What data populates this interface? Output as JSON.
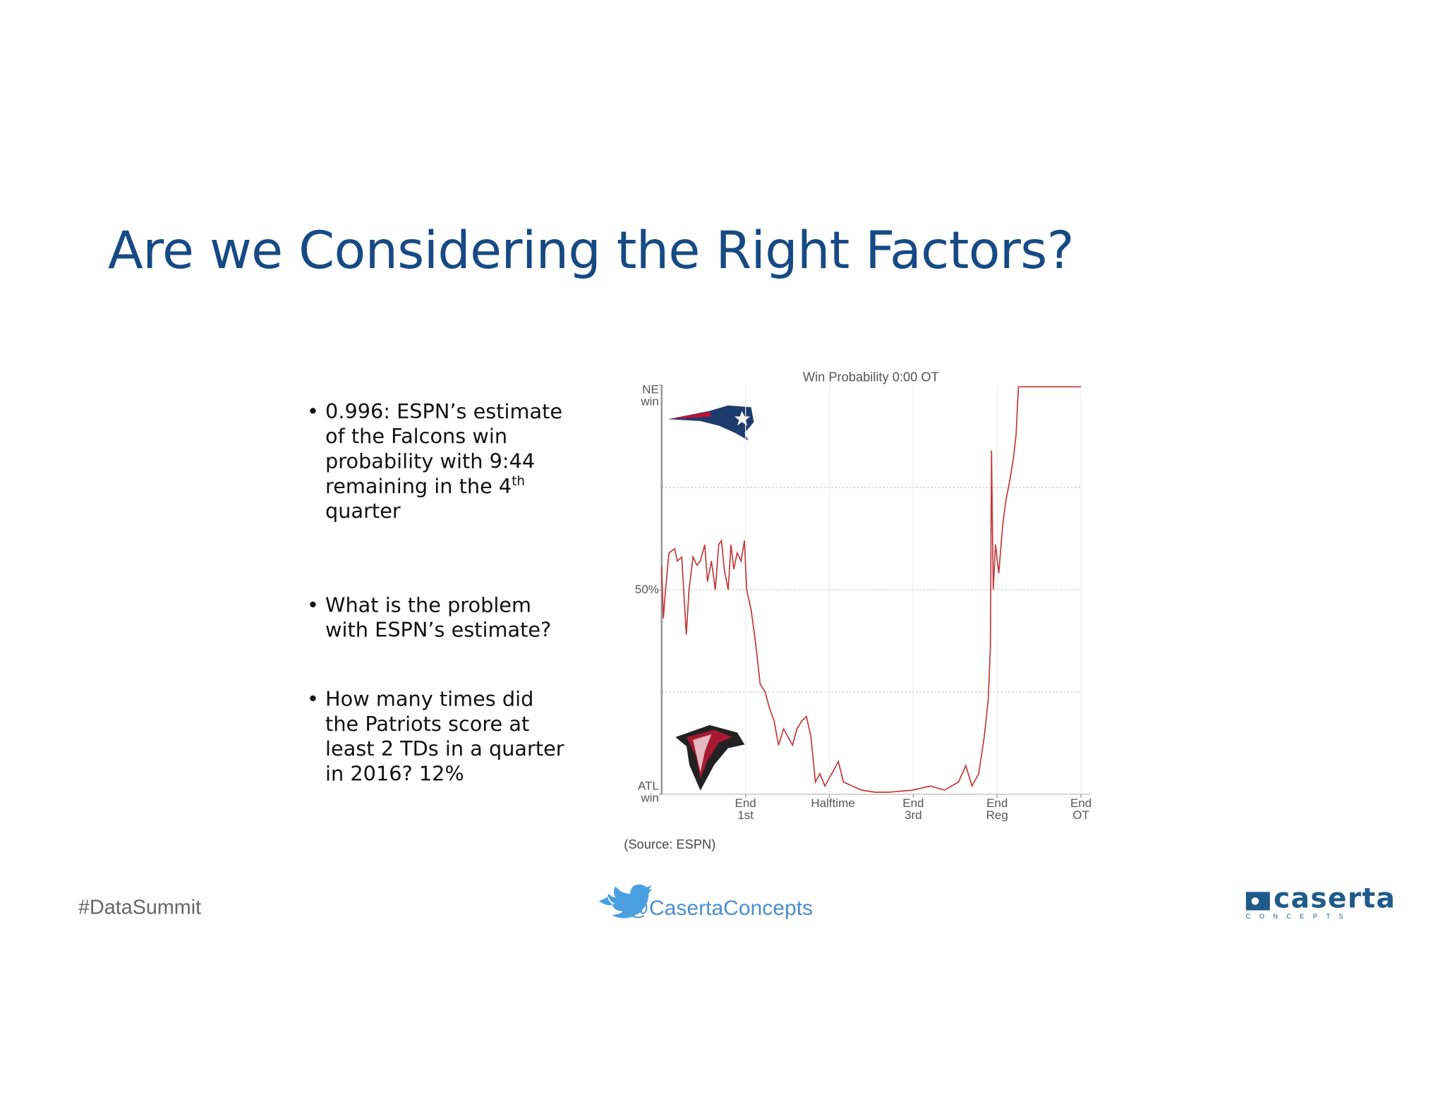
{
  "title": "Are we Considering the Right Factors?",
  "bullets": [
    {
      "text": "0.996: ESPN’s estimate of the Falcons win probability with 9:44 remaining in the 4",
      "sup": "th",
      "tail": "quarter"
    },
    {
      "text": "What is the problem with ESPN’s estimate?"
    },
    {
      "text": "How many times did the Patriots score at least 2 TDs in a quarter in 2016? 12%"
    }
  ],
  "source": "(Source: ESPN)",
  "footer": {
    "hashtag": "#DataSummit",
    "handle": "@CasertaConcepts",
    "brand": "caserta",
    "brand_sub": "CONCEPTS"
  },
  "chart_data": {
    "type": "line",
    "title": "Win Probability 0:00 OT",
    "color": "#c0393b",
    "grid": true,
    "xlim": [
      0,
      75
    ],
    "xticks": [
      {
        "value": 15,
        "label": "End 1st"
      },
      {
        "value": 30,
        "label": "Halftime"
      },
      {
        "value": 45,
        "label": "End 3rd"
      },
      {
        "value": 60,
        "label": "End Reg"
      },
      {
        "value": 75,
        "label": "End OT"
      }
    ],
    "ylim": [
      0,
      100
    ],
    "yticks": [
      {
        "value": 0,
        "label": "ATL win"
      },
      {
        "value": 50,
        "label": "50%"
      },
      {
        "value": 100,
        "label": "NE win"
      }
    ],
    "x": [
      0,
      0.3,
      0.7,
      1.3,
      2.3,
      2.8,
      3.6,
      4.4,
      4.9,
      5.6,
      6.3,
      6.9,
      7.7,
      8.2,
      8.9,
      9.6,
      10.2,
      10.7,
      11.2,
      11.9,
      12.4,
      12.9,
      13.5,
      14.2,
      14.8,
      15.2,
      16.0,
      16.8,
      17.6,
      18.5,
      19.3,
      20.1,
      20.9,
      21.8,
      22.6,
      23.4,
      24.2,
      25.1,
      25.9,
      26.7,
      27.5,
      28.3,
      29.2,
      30.0,
      30.8,
      31.6,
      32.5,
      34.1,
      35.8,
      38.2,
      40.7,
      44.8,
      48.1,
      50.6,
      53.1,
      54.4,
      55.5,
      56.7,
      57.7,
      58.4,
      58.8,
      59.0,
      59.3,
      59.7,
      60.3,
      61.0,
      61.6,
      62.3,
      62.9,
      63.4,
      63.8,
      64.1,
      75
    ],
    "values": [
      55.6,
      43,
      50,
      59,
      60,
      57,
      58,
      39,
      50,
      58,
      56,
      57,
      61,
      52,
      57,
      50,
      61,
      62,
      55,
      50,
      61,
      55,
      59,
      57,
      62,
      50,
      45,
      37,
      27,
      25,
      21,
      18,
      12,
      16,
      14,
      12,
      16,
      18,
      19,
      14,
      3,
      5,
      2,
      4,
      6,
      8,
      3,
      2,
      1,
      0.5,
      0.5,
      1,
      2,
      1,
      3,
      7,
      2,
      5,
      14,
      23,
      36,
      84,
      50,
      61,
      54,
      66,
      72,
      77,
      82,
      88,
      99.6,
      99.6,
      99.6
    ]
  }
}
